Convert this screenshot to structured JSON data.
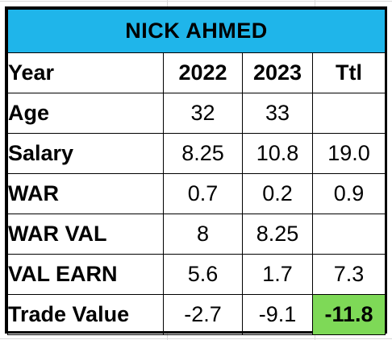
{
  "title": "NICK AHMED",
  "headers": {
    "label": "Year",
    "y2022": "2022",
    "y2023": "2023",
    "total": "Ttl"
  },
  "rows": [
    {
      "label": "Age",
      "y2022": "32",
      "y2023": "33",
      "total": ""
    },
    {
      "label": "Salary",
      "y2022": "8.25",
      "y2023": "10.8",
      "total": "19.0"
    },
    {
      "label": "WAR",
      "y2022": "0.7",
      "y2023": "0.2",
      "total": "0.9"
    },
    {
      "label": "WAR VAL",
      "y2022": "8",
      "y2023": "8.25",
      "total": ""
    },
    {
      "label": "VAL EARN",
      "y2022": "5.6",
      "y2023": "1.7",
      "total": "7.3"
    },
    {
      "label": "Trade Value",
      "y2022": "-2.7",
      "y2023": "-9.1",
      "total": "-11.8"
    }
  ],
  "colors": {
    "title_bg": "#1fb5ea",
    "total_highlight_bg": "#7ed957"
  }
}
